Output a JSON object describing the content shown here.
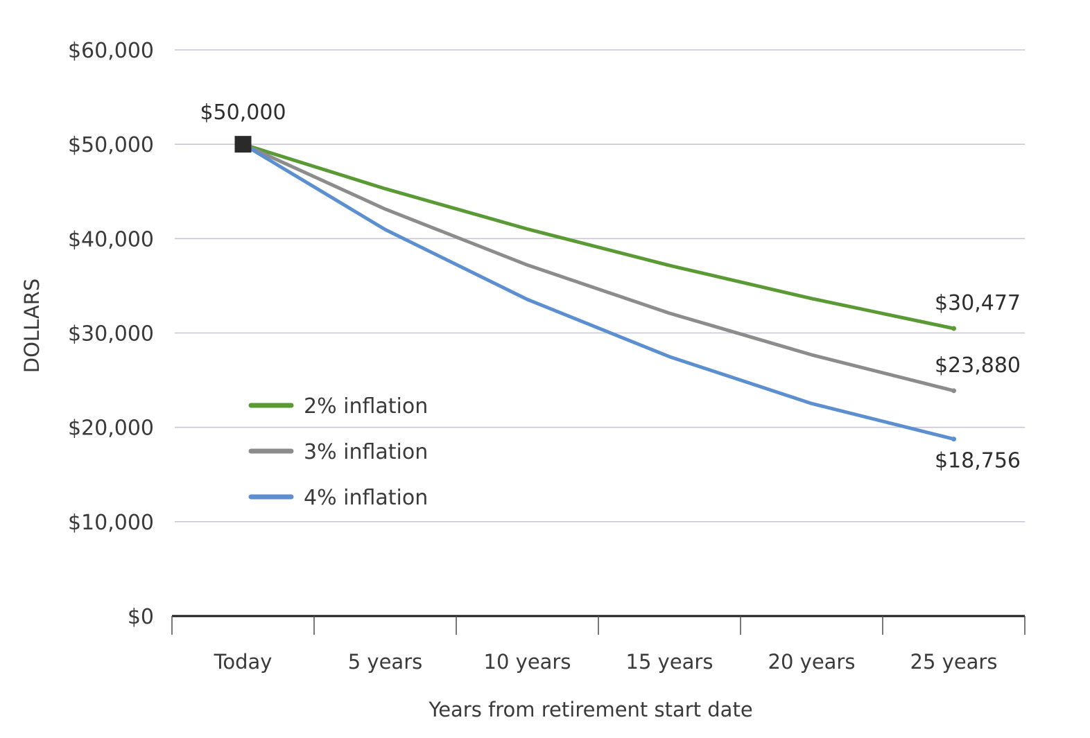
{
  "chart_data": {
    "type": "line",
    "title": "",
    "xlabel": "Years from retirement start date",
    "ylabel": "DOLLARS",
    "categories": [
      "Today",
      "5 years",
      "10 years",
      "15 years",
      "20 years",
      "25 years"
    ],
    "ylim": [
      0,
      60000
    ],
    "yticks": [
      {
        "value": 0,
        "label": "$0"
      },
      {
        "value": 10000,
        "label": "$10,000"
      },
      {
        "value": 20000,
        "label": "$20,000"
      },
      {
        "value": 30000,
        "label": "$30,000"
      },
      {
        "value": 40000,
        "label": "$40,000"
      },
      {
        "value": 50000,
        "label": "$50,000"
      },
      {
        "value": 60000,
        "label": "$60,000"
      }
    ],
    "grid": true,
    "start_point": {
      "category": "Today",
      "value": 50000,
      "label": "$50,000"
    },
    "series": [
      {
        "name": "2% inflation",
        "color": "#5a9a34",
        "values": [
          50000,
          45287,
          41017,
          37153,
          33648,
          30477
        ],
        "end_label": "$30,477"
      },
      {
        "name": "3% inflation",
        "color": "#8c8c8c",
        "values": [
          50000,
          43130,
          37205,
          32094,
          27684,
          23880
        ],
        "end_label": "$23,880"
      },
      {
        "name": "4% inflation",
        "color": "#5b8fd0",
        "values": [
          50000,
          40960,
          33553,
          27487,
          22522,
          18756
        ],
        "end_label": "$18,756"
      }
    ],
    "legend_position": "left-middle"
  }
}
